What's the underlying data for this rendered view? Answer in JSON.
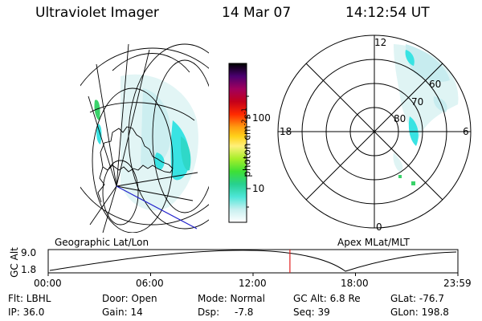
{
  "header": {
    "instrument": "Ultraviolet Imager",
    "date": "14 Mar 07",
    "time": "14:12:54 UT"
  },
  "colorbar": {
    "unit_label": "photon cm",
    "unit_exp1": "-2",
    "unit_s": "s",
    "unit_exp2": "-1",
    "ticks": [
      "100",
      "10"
    ]
  },
  "polar_plot": {
    "mlt_labels": {
      "top": "12",
      "left": "18",
      "right": "6",
      "bottom": "0"
    },
    "lat_labels": [
      "60",
      "70",
      "80"
    ]
  },
  "timeline": {
    "axis_label": "GC Alt",
    "y_ticks": [
      "9.0",
      "1.8"
    ],
    "left_title": "Geographic Lat/Lon",
    "right_title": "Apex MLat/MLT",
    "x_ticks": [
      "00:00",
      "06:00",
      "12:00",
      "18:00",
      "23:59"
    ],
    "current_time_fraction": 0.59
  },
  "info": {
    "row1": {
      "flt": "Flt: LBHL",
      "door": "Door: Open",
      "mode": "Mode: Normal",
      "gcalt": "GC Alt: 6.8 Re",
      "glat": "GLat: -76.7"
    },
    "row2": {
      "ip": "IP: 36.0",
      "gain": "Gain: 14",
      "dsp_label": "Dsp:",
      "dsp_value": "-7.8",
      "seq": "Seq: 39",
      "glon": "GLon: 198.8"
    }
  },
  "colors": {
    "auroral_cyan": "#39e3e3",
    "auroral_light": "#bfeff0",
    "auroral_green": "#3ad36a",
    "marker_red": "#e02020",
    "track_blue": "#2222cc"
  }
}
